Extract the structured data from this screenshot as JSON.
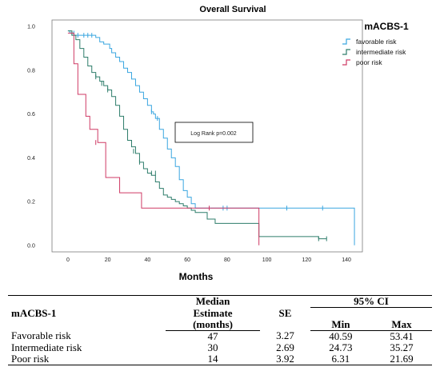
{
  "chart_data": {
    "type": "line",
    "title": "Overall Survival",
    "subtitle": "mACBS-1",
    "xlabel": "Months",
    "ylabel": "",
    "xlim": [
      -8,
      148
    ],
    "ylim": [
      -0.03,
      1.03
    ],
    "xticks": [
      "0",
      "20",
      "40",
      "60",
      "80",
      "100",
      "120",
      "140"
    ],
    "yticks": [
      "0.0",
      "0.2",
      "0.4",
      "0.6",
      "0.8",
      "1.0"
    ],
    "annotation": "Log Rank p=0.002",
    "series": [
      {
        "name": "favorable risk",
        "color": "#3aa6e0",
        "x": [
          0,
          1,
          3,
          14,
          16,
          18,
          21,
          22,
          24,
          26,
          28,
          30,
          32,
          34,
          36,
          38,
          40,
          42,
          43,
          44,
          46,
          48,
          50,
          52,
          54,
          56,
          58,
          60,
          62,
          64,
          144
        ],
        "y": [
          0.98,
          0.97,
          0.96,
          0.95,
          0.93,
          0.92,
          0.9,
          0.88,
          0.86,
          0.84,
          0.81,
          0.79,
          0.76,
          0.73,
          0.7,
          0.67,
          0.64,
          0.61,
          0.6,
          0.58,
          0.53,
          0.49,
          0.44,
          0.4,
          0.36,
          0.3,
          0.25,
          0.22,
          0.19,
          0.17,
          0.0
        ],
        "censored": [
          [
            3,
            0.97
          ],
          [
            5,
            0.96
          ],
          [
            8,
            0.96
          ],
          [
            10,
            0.96
          ],
          [
            12,
            0.96
          ],
          [
            42,
            0.61
          ],
          [
            45,
            0.58
          ],
          [
            78,
            0.17
          ],
          [
            80,
            0.17
          ],
          [
            110,
            0.17
          ],
          [
            128,
            0.17
          ]
        ]
      },
      {
        "name": "intermediate risk",
        "color": "#2e7d6b",
        "x": [
          0,
          2,
          4,
          6,
          8,
          10,
          12,
          14,
          16,
          18,
          20,
          22,
          24,
          26,
          28,
          30,
          32,
          34,
          36,
          38,
          40,
          42,
          44,
          46,
          48,
          50,
          52,
          54,
          56,
          58,
          60,
          62,
          64,
          70,
          74,
          96,
          126,
          130
        ],
        "y": [
          0.98,
          0.96,
          0.94,
          0.9,
          0.86,
          0.82,
          0.79,
          0.77,
          0.75,
          0.73,
          0.71,
          0.68,
          0.64,
          0.59,
          0.53,
          0.48,
          0.45,
          0.42,
          0.38,
          0.35,
          0.33,
          0.32,
          0.29,
          0.26,
          0.23,
          0.22,
          0.21,
          0.2,
          0.19,
          0.18,
          0.17,
          0.16,
          0.15,
          0.12,
          0.1,
          0.04,
          0.03,
          0.03
        ],
        "censored": [
          [
            2,
            0.97
          ],
          [
            14,
            0.77
          ],
          [
            17,
            0.74
          ],
          [
            20,
            0.71
          ],
          [
            33,
            0.43
          ],
          [
            36,
            0.38
          ],
          [
            42,
            0.33
          ],
          [
            44,
            0.33
          ],
          [
            126,
            0.03
          ],
          [
            130,
            0.03
          ]
        ]
      },
      {
        "name": "poor risk",
        "color": "#cf3a65",
        "x": [
          0,
          3,
          5,
          9,
          11,
          15,
          19,
          26,
          37,
          96,
          96
        ],
        "y": [
          0.97,
          0.83,
          0.69,
          0.59,
          0.53,
          0.47,
          0.31,
          0.24,
          0.17,
          0.14,
          0.0
        ],
        "censored": [
          [
            14,
            0.47
          ],
          [
            71,
            0.17
          ]
        ]
      }
    ]
  },
  "table": {
    "col1": "mACBS-1",
    "col2_lines": [
      "Median",
      "Estimate",
      "(months)"
    ],
    "col3": "SE",
    "ci": "95% CI",
    "ci_min": "Min",
    "ci_max": "Max",
    "rows": [
      {
        "group": "Favorable risk",
        "median": "47",
        "se": "3.27",
        "min": "40.59",
        "max": "53.41"
      },
      {
        "group": "Intermediate risk",
        "median": "30",
        "se": "2.69",
        "min": "24.73",
        "max": "35.27"
      },
      {
        "group": "Poor risk",
        "median": "14",
        "se": "3.92",
        "min": "6.31",
        "max": "21.69"
      }
    ]
  }
}
